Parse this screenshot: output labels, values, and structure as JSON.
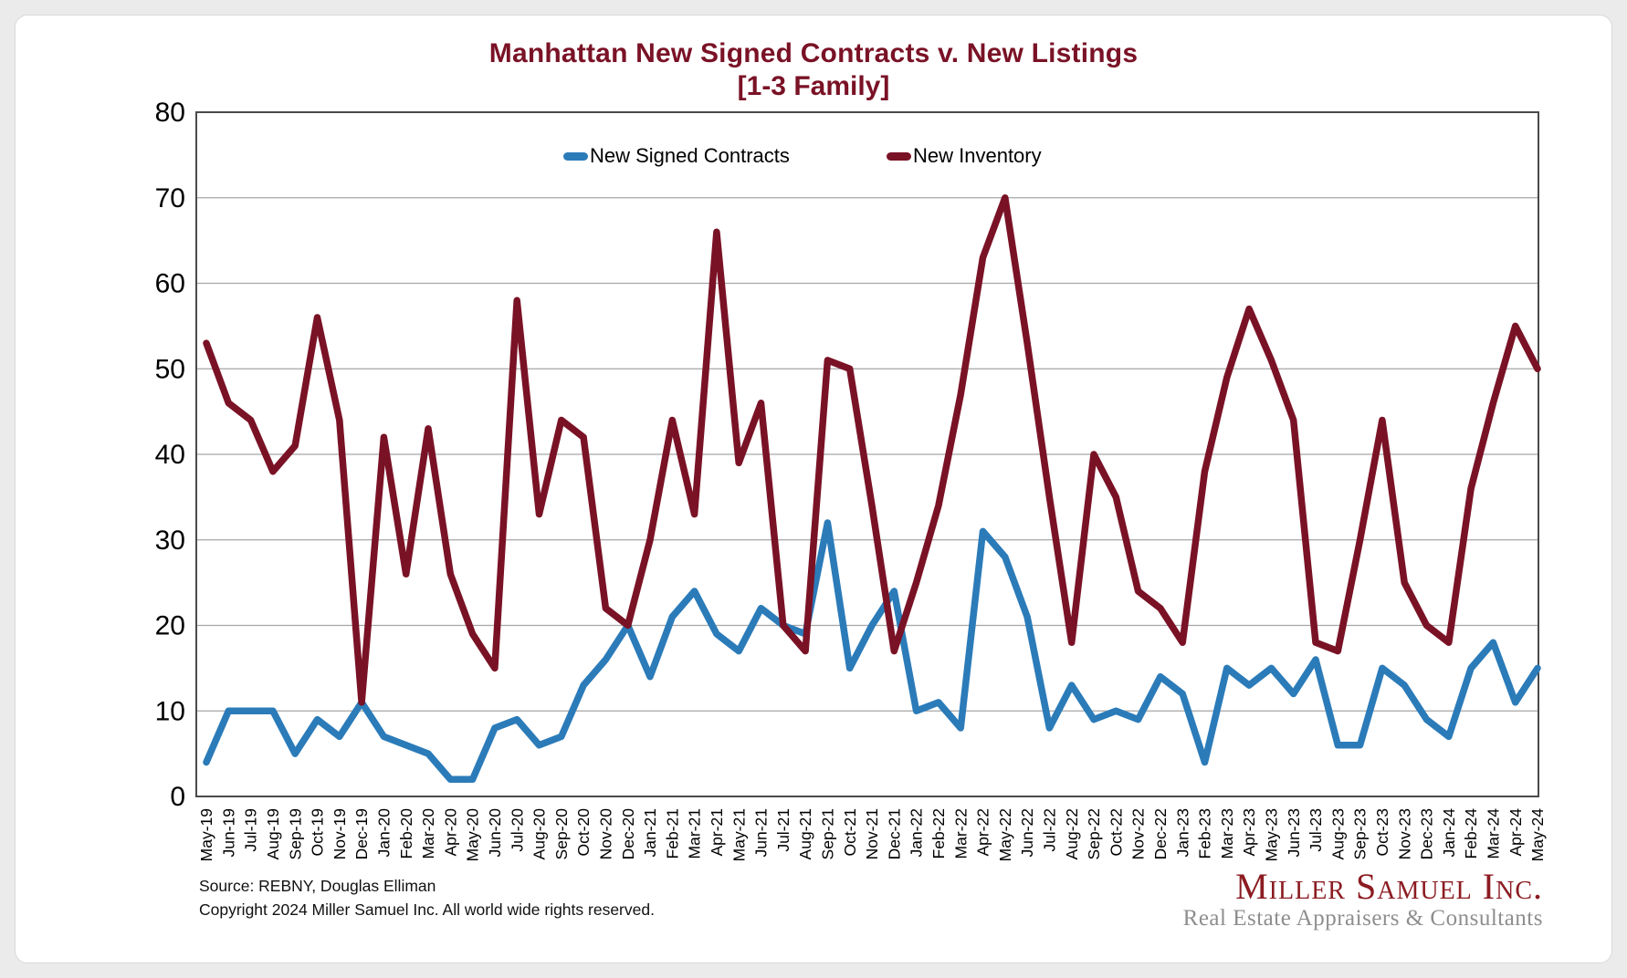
{
  "window": {
    "background_color": "#ebebeb",
    "card_color": "#ffffff"
  },
  "title": "Manhattan New Signed Contracts v. New Listings",
  "subtitle": "[1-3 Family]",
  "legend": [
    {
      "label": "New Signed Contracts",
      "color": "#2b7bb9"
    },
    {
      "label": "New Inventory",
      "color": "#7a1226"
    }
  ],
  "chart_data": {
    "type": "line",
    "title": "Manhattan New Signed Contracts v. New Listings [1-3 Family]",
    "xlabel": "",
    "ylabel": "",
    "ylim": [
      0,
      80
    ],
    "yticks": [
      0,
      10,
      20,
      30,
      40,
      50,
      60,
      70,
      80
    ],
    "grid": "horizontal",
    "legend_position": "top-inside",
    "categories": [
      "May-19",
      "Jun-19",
      "Jul-19",
      "Aug-19",
      "Sep-19",
      "Oct-19",
      "Nov-19",
      "Dec-19",
      "Jan-20",
      "Feb-20",
      "Mar-20",
      "Apr-20",
      "May-20",
      "Jun-20",
      "Jul-20",
      "Aug-20",
      "Sep-20",
      "Oct-20",
      "Nov-20",
      "Dec-20",
      "Jan-21",
      "Feb-21",
      "Mar-21",
      "Apr-21",
      "May-21",
      "Jun-21",
      "Jul-21",
      "Aug-21",
      "Sep-21",
      "Oct-21",
      "Nov-21",
      "Dec-21",
      "Jan-22",
      "Feb-22",
      "Mar-22",
      "Apr-22",
      "May-22",
      "Jun-22",
      "Jul-22",
      "Aug-22",
      "Sep-22",
      "Oct-22",
      "Nov-22",
      "Dec-22",
      "Jan-23",
      "Feb-23",
      "Mar-23",
      "Apr-23",
      "May-23",
      "Jun-23",
      "Jul-23",
      "Aug-23",
      "Sep-23",
      "Oct-23",
      "Nov-23",
      "Dec-23",
      "Jan-24",
      "Feb-24",
      "Mar-24",
      "Apr-24",
      "May-24"
    ],
    "series": [
      {
        "name": "New Signed Contracts",
        "color": "#2b7bb9",
        "values": [
          4,
          10,
          10,
          10,
          5,
          9,
          7,
          11,
          7,
          6,
          5,
          2,
          2,
          8,
          9,
          6,
          7,
          13,
          16,
          20,
          14,
          21,
          24,
          19,
          17,
          22,
          20,
          19,
          32,
          15,
          20,
          24,
          10,
          11,
          8,
          31,
          28,
          21,
          8,
          13,
          9,
          10,
          9,
          14,
          12,
          4,
          15,
          13,
          15,
          12,
          16,
          6,
          6,
          15,
          13,
          9,
          7,
          15,
          18,
          11,
          15
        ]
      },
      {
        "name": "New Inventory",
        "color": "#7a1226",
        "values": [
          53,
          46,
          44,
          38,
          41,
          56,
          44,
          11,
          42,
          26,
          43,
          26,
          19,
          15,
          58,
          33,
          44,
          42,
          22,
          20,
          30,
          44,
          33,
          66,
          39,
          46,
          20,
          17,
          51,
          50,
          34,
          17,
          25,
          34,
          47,
          63,
          70,
          53,
          35,
          18,
          40,
          35,
          24,
          22,
          18,
          38,
          49,
          57,
          51,
          44,
          18,
          17,
          30,
          44,
          25,
          20,
          18,
          36,
          46,
          55,
          50
        ]
      }
    ]
  },
  "footer": {
    "source_line": "Source: REBNY, Douglas Elliman",
    "copyright_line": "Copyright 2024 Miller Samuel Inc.  All world wide rights reserved."
  },
  "logo": {
    "name": "Miller Samuel Inc.",
    "tagline": "Real Estate Appraisers & Consultants"
  },
  "axis_style": {
    "frame_color": "#4a4a4a",
    "gridline_color": "#a6a6a6",
    "label_color": "#000000"
  }
}
